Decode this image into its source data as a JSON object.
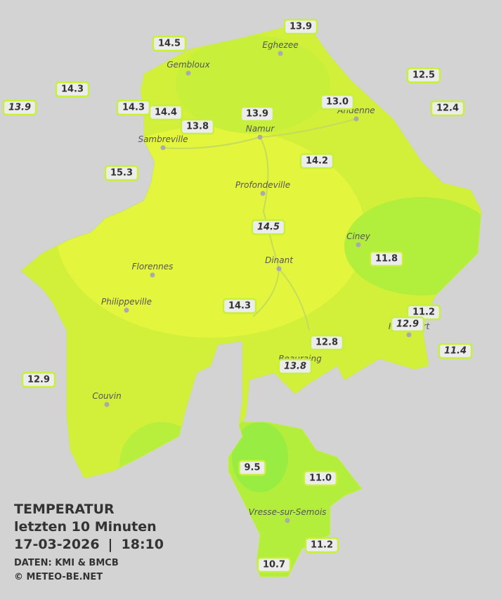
{
  "legend": {
    "title": "TEMPERATUR",
    "subtitle": "letzten 10 Minuten",
    "date": "17-03-2026",
    "separator": "|",
    "time": "18:10",
    "source": "DATEN: KMI & BMCB",
    "copyright": "© METEO-BE.NET"
  },
  "cities": [
    "Eghezee",
    "Gembloux",
    "Andenne",
    "Namur",
    "Sambreville",
    "Profondeville",
    "Ciney",
    "Dinant",
    "Florennes",
    "Philippeville",
    "Couvin",
    "Vresse-sur-Semois",
    "Rochefort",
    "Beauraing"
  ],
  "stations": [
    {
      "label": "13.9",
      "italic": false
    },
    {
      "label": "14.5",
      "italic": false
    },
    {
      "label": "14.3",
      "italic": false
    },
    {
      "label": "13.9",
      "italic": true
    },
    {
      "label": "14.3",
      "italic": false
    },
    {
      "label": "14.4",
      "italic": false
    },
    {
      "label": "13.8",
      "italic": false
    },
    {
      "label": "13.9",
      "italic": false
    },
    {
      "label": "13.0",
      "italic": false
    },
    {
      "label": "12.5",
      "italic": false
    },
    {
      "label": "12.4",
      "italic": false
    },
    {
      "label": "15.3",
      "italic": false
    },
    {
      "label": "14.2",
      "italic": false
    },
    {
      "label": "14.5",
      "italic": true
    },
    {
      "label": "11.8",
      "italic": false
    },
    {
      "label": "14.3",
      "italic": false
    },
    {
      "label": "11.2",
      "italic": false
    },
    {
      "label": "12.9",
      "italic": true
    },
    {
      "label": "12.8",
      "italic": false
    },
    {
      "label": "11.4",
      "italic": true
    },
    {
      "label": "13.8",
      "italic": true
    },
    {
      "label": "12.9",
      "italic": false
    },
    {
      "label": "9.5",
      "italic": false
    },
    {
      "label": "11.0",
      "italic": false
    },
    {
      "label": "11.2",
      "italic": false
    },
    {
      "label": "10.7",
      "italic": false
    }
  ]
}
